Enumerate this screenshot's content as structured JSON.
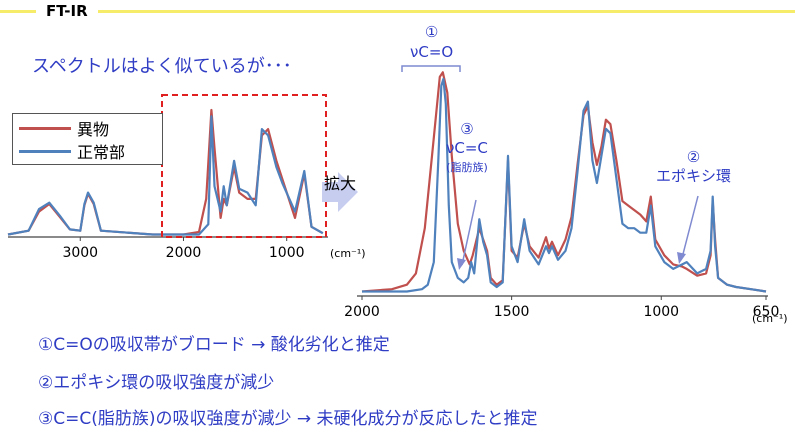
{
  "header": {
    "title": "FT-IR"
  },
  "subtitle": "スペクトルはよく似ているが･･･",
  "enlarge_label": "拡大",
  "legend": [
    {
      "label": "異物",
      "color": "#c0504d"
    },
    {
      "label": "正常部",
      "color": "#4f81bd"
    }
  ],
  "annotations": {
    "a1": {
      "num": "①",
      "text": "νC=O"
    },
    "a3": {
      "num": "③",
      "text": "νC=C",
      "sub": "(脂肪族)"
    },
    "a2": {
      "num": "②",
      "text": "エポキシ環"
    }
  },
  "notes": [
    "①C=Oの吸収帯がブロード → 酸化劣化と推定",
    "②エポキシ環の吸収強度が減少",
    "③C=C(脂肪族)の吸収強度が減少 → 未硬化成分が反応したと推定"
  ],
  "chart_data": [
    {
      "type": "line",
      "title": "",
      "xlabel": "(cm⁻¹)",
      "ylabel": "",
      "xlim": [
        3700,
        600
      ],
      "ylim": [
        0,
        1
      ],
      "x_ticks": [
        "3000",
        "2000",
        "1000"
      ],
      "series": [
        {
          "name": "異物",
          "color": "#c0504d",
          "points": [
            [
              3700,
              0.02
            ],
            [
              3500,
              0.05
            ],
            [
              3400,
              0.2
            ],
            [
              3300,
              0.26
            ],
            [
              3200,
              0.16
            ],
            [
              3100,
              0.06
            ],
            [
              3000,
              0.05
            ],
            [
              2960,
              0.25
            ],
            [
              2925,
              0.34
            ],
            [
              2870,
              0.26
            ],
            [
              2850,
              0.2
            ],
            [
              2800,
              0.05
            ],
            [
              2300,
              0.02
            ],
            [
              2000,
              0.02
            ],
            [
              1850,
              0.04
            ],
            [
              1780,
              0.3
            ],
            [
              1730,
              1.0
            ],
            [
              1700,
              0.7
            ],
            [
              1640,
              0.15
            ],
            [
              1610,
              0.3
            ],
            [
              1580,
              0.25
            ],
            [
              1510,
              0.55
            ],
            [
              1460,
              0.35
            ],
            [
              1380,
              0.3
            ],
            [
              1300,
              0.3
            ],
            [
              1240,
              0.8
            ],
            [
              1180,
              0.85
            ],
            [
              1100,
              0.6
            ],
            [
              1040,
              0.45
            ],
            [
              920,
              0.15
            ],
            [
              830,
              0.5
            ],
            [
              760,
              0.08
            ],
            [
              650,
              0.03
            ]
          ]
        },
        {
          "name": "正常部",
          "color": "#4f81bd",
          "points": [
            [
              3700,
              0.02
            ],
            [
              3500,
              0.05
            ],
            [
              3400,
              0.22
            ],
            [
              3300,
              0.27
            ],
            [
              3200,
              0.17
            ],
            [
              3100,
              0.06
            ],
            [
              3000,
              0.05
            ],
            [
              2960,
              0.26
            ],
            [
              2925,
              0.35
            ],
            [
              2870,
              0.27
            ],
            [
              2850,
              0.21
            ],
            [
              2800,
              0.05
            ],
            [
              2300,
              0.02
            ],
            [
              2000,
              0.02
            ],
            [
              1850,
              0.02
            ],
            [
              1760,
              0.1
            ],
            [
              1730,
              0.95
            ],
            [
              1700,
              0.4
            ],
            [
              1640,
              0.2
            ],
            [
              1610,
              0.4
            ],
            [
              1580,
              0.25
            ],
            [
              1510,
              0.6
            ],
            [
              1460,
              0.38
            ],
            [
              1380,
              0.35
            ],
            [
              1300,
              0.25
            ],
            [
              1240,
              0.85
            ],
            [
              1180,
              0.8
            ],
            [
              1100,
              0.55
            ],
            [
              1040,
              0.42
            ],
            [
              920,
              0.2
            ],
            [
              830,
              0.52
            ],
            [
              760,
              0.08
            ],
            [
              650,
              0.03
            ]
          ]
        }
      ]
    },
    {
      "type": "line",
      "title": "",
      "xlabel": "(cm⁻¹)",
      "ylabel": "",
      "xlim": [
        2000,
        650
      ],
      "ylim": [
        0,
        1
      ],
      "x_ticks": [
        "2000",
        "1500",
        "1000",
        "650"
      ],
      "series": [
        {
          "name": "異物",
          "color": "#c0504d",
          "points": [
            [
              2000,
              0.02
            ],
            [
              1900,
              0.03
            ],
            [
              1850,
              0.05
            ],
            [
              1820,
              0.1
            ],
            [
              1790,
              0.3
            ],
            [
              1760,
              0.7
            ],
            [
              1740,
              0.97
            ],
            [
              1730,
              0.99
            ],
            [
              1715,
              0.9
            ],
            [
              1700,
              0.62
            ],
            [
              1680,
              0.32
            ],
            [
              1660,
              0.2
            ],
            [
              1640,
              0.14
            ],
            [
              1630,
              0.18
            ],
            [
              1608,
              0.3
            ],
            [
              1595,
              0.25
            ],
            [
              1582,
              0.2
            ],
            [
              1570,
              0.08
            ],
            [
              1550,
              0.05
            ],
            [
              1530,
              0.07
            ],
            [
              1512,
              0.6
            ],
            [
              1500,
              0.2
            ],
            [
              1480,
              0.17
            ],
            [
              1458,
              0.32
            ],
            [
              1440,
              0.22
            ],
            [
              1410,
              0.17
            ],
            [
              1385,
              0.26
            ],
            [
              1375,
              0.21
            ],
            [
              1365,
              0.24
            ],
            [
              1345,
              0.18
            ],
            [
              1320,
              0.25
            ],
            [
              1300,
              0.35
            ],
            [
              1280,
              0.58
            ],
            [
              1260,
              0.8
            ],
            [
              1245,
              0.84
            ],
            [
              1230,
              0.68
            ],
            [
              1215,
              0.58
            ],
            [
              1200,
              0.66
            ],
            [
              1185,
              0.78
            ],
            [
              1170,
              0.76
            ],
            [
              1150,
              0.6
            ],
            [
              1130,
              0.42
            ],
            [
              1110,
              0.4
            ],
            [
              1090,
              0.38
            ],
            [
              1070,
              0.36
            ],
            [
              1050,
              0.33
            ],
            [
              1035,
              0.44
            ],
            [
              1020,
              0.25
            ],
            [
              990,
              0.18
            ],
            [
              960,
              0.14
            ],
            [
              930,
              0.13
            ],
            [
              915,
              0.12
            ],
            [
              880,
              0.09
            ],
            [
              850,
              0.1
            ],
            [
              835,
              0.18
            ],
            [
              828,
              0.42
            ],
            [
              820,
              0.25
            ],
            [
              810,
              0.08
            ],
            [
              780,
              0.05
            ],
            [
              750,
              0.04
            ],
            [
              700,
              0.03
            ],
            [
              650,
              0.02
            ]
          ]
        },
        {
          "name": "正常部",
          "color": "#4f81bd",
          "points": [
            [
              2000,
              0.02
            ],
            [
              1900,
              0.02
            ],
            [
              1850,
              0.02
            ],
            [
              1800,
              0.03
            ],
            [
              1780,
              0.05
            ],
            [
              1760,
              0.15
            ],
            [
              1745,
              0.6
            ],
            [
              1735,
              0.93
            ],
            [
              1728,
              0.96
            ],
            [
              1720,
              0.85
            ],
            [
              1710,
              0.4
            ],
            [
              1700,
              0.15
            ],
            [
              1680,
              0.08
            ],
            [
              1660,
              0.06
            ],
            [
              1645,
              0.08
            ],
            [
              1635,
              0.15
            ],
            [
              1625,
              0.1
            ],
            [
              1608,
              0.34
            ],
            [
              1595,
              0.24
            ],
            [
              1582,
              0.18
            ],
            [
              1570,
              0.06
            ],
            [
              1550,
              0.04
            ],
            [
              1530,
              0.06
            ],
            [
              1512,
              0.62
            ],
            [
              1500,
              0.22
            ],
            [
              1480,
              0.15
            ],
            [
              1458,
              0.34
            ],
            [
              1440,
              0.2
            ],
            [
              1410,
              0.14
            ],
            [
              1385,
              0.22
            ],
            [
              1375,
              0.19
            ],
            [
              1365,
              0.22
            ],
            [
              1345,
              0.16
            ],
            [
              1320,
              0.2
            ],
            [
              1300,
              0.3
            ],
            [
              1280,
              0.55
            ],
            [
              1260,
              0.82
            ],
            [
              1245,
              0.86
            ],
            [
              1230,
              0.6
            ],
            [
              1215,
              0.5
            ],
            [
              1200,
              0.62
            ],
            [
              1185,
              0.74
            ],
            [
              1170,
              0.72
            ],
            [
              1150,
              0.52
            ],
            [
              1130,
              0.32
            ],
            [
              1110,
              0.3
            ],
            [
              1090,
              0.3
            ],
            [
              1070,
              0.28
            ],
            [
              1050,
              0.28
            ],
            [
              1035,
              0.4
            ],
            [
              1020,
              0.22
            ],
            [
              990,
              0.15
            ],
            [
              960,
              0.12
            ],
            [
              930,
              0.14
            ],
            [
              915,
              0.15
            ],
            [
              880,
              0.1
            ],
            [
              850,
              0.12
            ],
            [
              835,
              0.2
            ],
            [
              828,
              0.44
            ],
            [
              820,
              0.22
            ],
            [
              810,
              0.08
            ],
            [
              780,
              0.05
            ],
            [
              750,
              0.04
            ],
            [
              700,
              0.03
            ],
            [
              650,
              0.02
            ]
          ]
        }
      ]
    }
  ]
}
